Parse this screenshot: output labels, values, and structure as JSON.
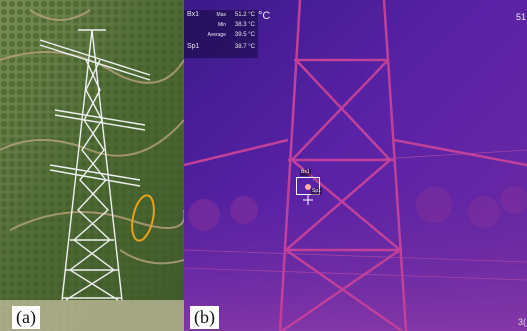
{
  "panels": {
    "a": {
      "letter": "(a)"
    },
    "b": {
      "letter": "(b)"
    }
  },
  "thermal": {
    "readout": {
      "box_tag": "Bx1",
      "rows": [
        {
          "key": "Max",
          "value": "51.2 °C"
        },
        {
          "key": "Min",
          "value": "38.3 °C"
        },
        {
          "key": "Average",
          "value": "39.5 °C"
        }
      ],
      "spot_tag": "Sp1",
      "spot_value": "38.7 °C"
    },
    "unit": "°C",
    "scale_top": "51",
    "scale_bottom": "3(",
    "box_label": "Bx1",
    "spot_label": "Sp1"
  },
  "colors": {
    "forest": "#4f6a34",
    "steel": "#e9ecef",
    "ellipse": "#e6a21c",
    "thermal_bg": "#4a1f9a",
    "thermal_tower": "#c0409a",
    "hotspot": "#ffb0a0"
  }
}
